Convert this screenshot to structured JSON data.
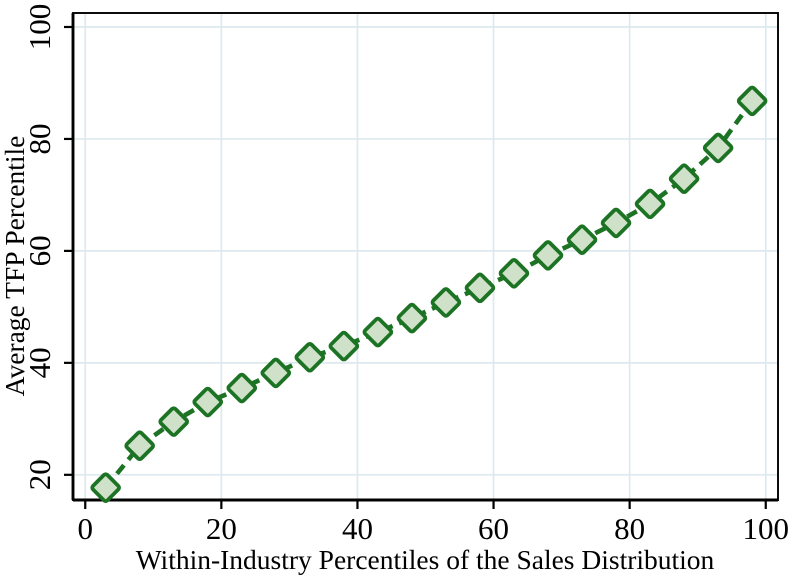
{
  "chart_data": {
    "type": "line",
    "subtype": "connected-scatter-dashed",
    "x": [
      3,
      8,
      13,
      18,
      23,
      28,
      33,
      38,
      43,
      48,
      53,
      58,
      63,
      68,
      73,
      78,
      83,
      88,
      93,
      98
    ],
    "y": [
      17.7,
      25.2,
      29.5,
      33.0,
      35.5,
      38.2,
      41.0,
      43.0,
      45.5,
      48.0,
      50.8,
      53.4,
      56.0,
      59.2,
      62.0,
      65.0,
      68.4,
      72.9,
      78.4,
      86.8
    ],
    "title": "",
    "xlabel": "Within-Industry Percentiles of the Sales Distribution",
    "ylabel": "Average TFP Percentile",
    "x_ticks": [
      0,
      20,
      40,
      60,
      80,
      100
    ],
    "y_ticks": [
      20,
      40,
      60,
      80,
      100
    ],
    "xlim": [
      -1.8,
      101.8
    ],
    "ylim": [
      15.5,
      102.5
    ],
    "grid": true,
    "legend": "none",
    "line_style": "dashed",
    "marker": "diamond",
    "colors": {
      "line": "#1d7324",
      "marker_fill": "#cfe1c9",
      "marker_stroke": "#1d7324",
      "grid": "#dde9ee",
      "axis": "#000000",
      "background": "#ffffff"
    }
  }
}
